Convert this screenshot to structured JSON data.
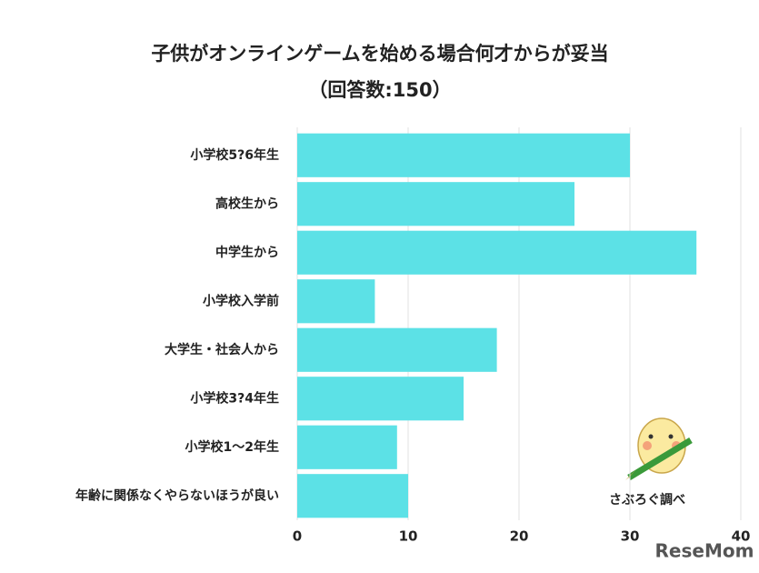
{
  "chart_data": {
    "type": "bar",
    "orientation": "horizontal",
    "title": "子供がオンラインゲームを始める場合何才からが妥当",
    "subtitle": "（回答数:150）",
    "categories": [
      "小学校5?6年生",
      "高校生から",
      "中学生から",
      "小学校入学前",
      "大学生・社会人から",
      "小学校3?4年生",
      "小学校1〜2年生",
      "年齢に関係なくやらないほうが良い"
    ],
    "values": [
      30,
      25,
      36,
      7,
      18,
      15,
      9,
      10
    ],
    "color": "#5ce1e6",
    "xlim": [
      0,
      40
    ],
    "xticks": [
      0,
      10,
      20,
      30,
      40
    ],
    "grid": true,
    "credit": "さぶろぐ調べ",
    "watermark": "ReseMom"
  }
}
